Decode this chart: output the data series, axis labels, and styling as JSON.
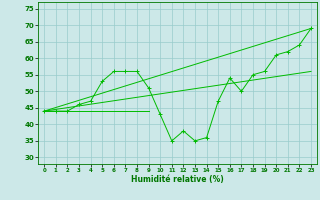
{
  "xlabel": "Humidité relative (%)",
  "xlim": [
    -0.5,
    23.5
  ],
  "ylim": [
    28,
    77
  ],
  "yticks": [
    30,
    35,
    40,
    45,
    50,
    55,
    60,
    65,
    70,
    75
  ],
  "xticks": [
    0,
    1,
    2,
    3,
    4,
    5,
    6,
    7,
    8,
    9,
    10,
    11,
    12,
    13,
    14,
    15,
    16,
    17,
    18,
    19,
    20,
    21,
    22,
    23
  ],
  "background_color": "#cce8e8",
  "grid_color": "#99cccc",
  "line_color": "#00bb00",
  "line_main": [
    44,
    44,
    44,
    46,
    47,
    53,
    56,
    56,
    56,
    51,
    43,
    35,
    38,
    35,
    36,
    47,
    54,
    50,
    55,
    56,
    61,
    62,
    64,
    69
  ],
  "line_upper": [
    [
      0,
      44
    ],
    [
      23,
      69
    ]
  ],
  "line_lower": [
    [
      0,
      44
    ],
    [
      23,
      56
    ]
  ],
  "line_flat": [
    [
      0,
      44
    ],
    [
      9,
      44
    ]
  ]
}
